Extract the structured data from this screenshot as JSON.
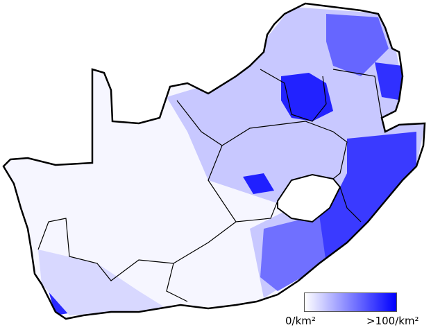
{
  "legend": {
    "min_label": "0/km²",
    "max_label": ">100/km²",
    "color_min": "#ffffff",
    "color_max": "#0000ff"
  },
  "map": {
    "fill_low": "#f4f4ff",
    "border_color": "#000000"
  }
}
